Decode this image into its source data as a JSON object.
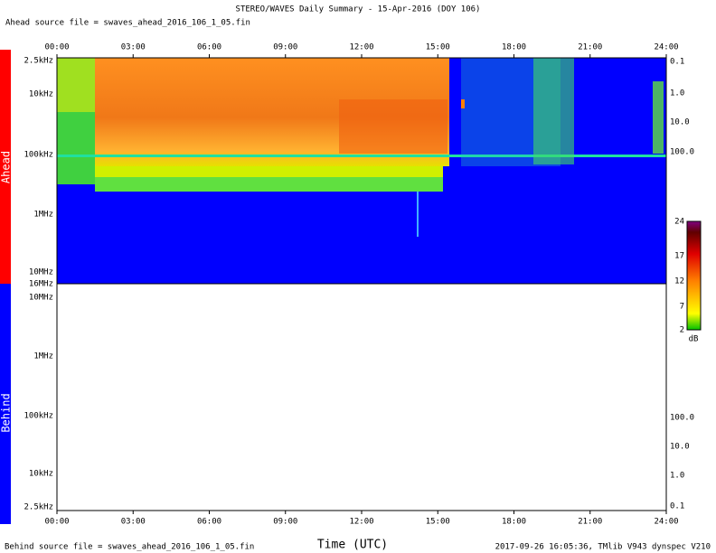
{
  "header": {
    "title": "STEREO/WAVES Daily Summary - 15-Apr-2016 (DOY 106)",
    "ahead_source": "Ahead source file = swaves_ahead_2016_106_1_05.fin"
  },
  "time_labels": [
    "00:00",
    "03:00",
    "06:00",
    "09:00",
    "12:00",
    "15:00",
    "18:00",
    "21:00",
    "24:00"
  ],
  "ahead_panel": {
    "label": "Ahead",
    "freq_labels": [
      "2.5kHz",
      "10kHz",
      "100kHz",
      "1MHz",
      "10MHz",
      "16MHz"
    ],
    "right_labels": [
      "0.1",
      "1.0",
      "10.0",
      "100.0"
    ]
  },
  "behind_panel": {
    "label": "Behind",
    "freq_labels": [
      "10MHz",
      "1MHz",
      "100kHz",
      "10kHz",
      "2.5kHz"
    ],
    "right_labels": [
      "100.0",
      "10.0",
      "1.0",
      "0.1"
    ]
  },
  "colorbar": {
    "labels": [
      "24",
      "17",
      "12",
      "7",
      "2"
    ],
    "unit": "dB"
  },
  "footer": {
    "behind_source": "Behind source file = swaves_ahead_2016_106_1_05.fin",
    "axis_title": "Time (UTC)",
    "stamp": "2017-09-26 16:05:36, TMlib V943 dynspec V210"
  }
}
